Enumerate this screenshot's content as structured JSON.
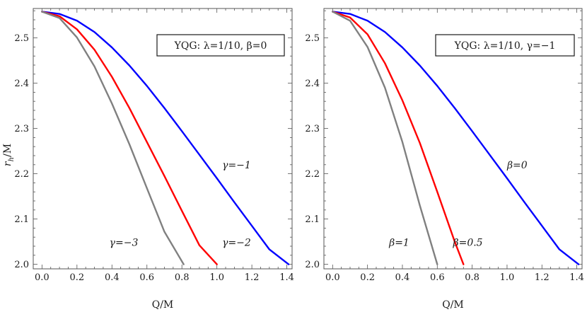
{
  "chart_data": [
    {
      "type": "line",
      "title": "",
      "xlabel": "Q/M",
      "ylabel_main": "r",
      "ylabel_sub": "h",
      "ylabel_suffix": "/M",
      "xlim": [
        -0.05,
        1.43
      ],
      "ylim": [
        1.99,
        2.565
      ],
      "xticks": [
        0.0,
        0.2,
        0.4,
        0.6,
        0.8,
        1.0,
        1.2,
        1.4
      ],
      "xtick_labels": [
        "0.0",
        "0.2",
        "0.4",
        "0.6",
        "0.8",
        "1.0",
        "1.2",
        "1.4"
      ],
      "yticks": [
        2.0,
        2.1,
        2.2,
        2.3,
        2.4,
        2.5
      ],
      "ytick_labels": [
        "2.0",
        "2.1",
        "2.2",
        "2.3",
        "2.4",
        "2.5"
      ],
      "legend": {
        "text": "YQG: λ=1/10,  β=0",
        "placement": "top-right"
      },
      "series": [
        {
          "name": "γ=−1",
          "color": "#0000ff",
          "x": [
            0.0,
            0.1,
            0.2,
            0.3,
            0.4,
            0.5,
            0.6,
            0.7,
            0.8,
            0.9,
            1.0,
            1.1,
            1.2,
            1.3,
            1.41
          ],
          "y": [
            2.558,
            2.553,
            2.538,
            2.513,
            2.479,
            2.439,
            2.394,
            2.345,
            2.294,
            2.242,
            2.19,
            2.137,
            2.085,
            2.033,
            2.0
          ]
        },
        {
          "name": "γ=−2",
          "color": "#ff0000",
          "x": [
            0.0,
            0.1,
            0.2,
            0.3,
            0.4,
            0.5,
            0.6,
            0.7,
            0.8,
            0.9,
            1.0
          ],
          "y": [
            2.558,
            2.548,
            2.519,
            2.474,
            2.414,
            2.345,
            2.27,
            2.195,
            2.118,
            2.042,
            2.0
          ]
        },
        {
          "name": "γ=−3",
          "color": "#808080",
          "x": [
            0.0,
            0.1,
            0.2,
            0.3,
            0.4,
            0.5,
            0.6,
            0.7,
            0.81
          ],
          "y": [
            2.558,
            2.544,
            2.501,
            2.437,
            2.355,
            2.265,
            2.168,
            2.072,
            2.0
          ]
        }
      ],
      "annotations": [
        {
          "text": "γ=−1",
          "x": 1.03,
          "y": 2.212
        },
        {
          "text": "γ=−2",
          "x": 1.03,
          "y": 2.041
        },
        {
          "text": "γ=−3",
          "x": 0.55,
          "y": 2.041
        }
      ]
    },
    {
      "type": "line",
      "title": "",
      "xlabel": "Q/M",
      "xlim": [
        -0.05,
        1.43
      ],
      "ylim": [
        1.99,
        2.565
      ],
      "xticks": [
        0.0,
        0.2,
        0.4,
        0.6,
        0.8,
        1.0,
        1.2,
        1.4
      ],
      "xtick_labels": [
        "0.0",
        "0.2",
        "0.4",
        "0.6",
        "0.8",
        "1.0",
        "1.2",
        "1.4"
      ],
      "yticks": [
        2.0,
        2.1,
        2.2,
        2.3,
        2.4,
        2.5
      ],
      "ytick_labels": [
        "2.0",
        "2.1",
        "2.2",
        "2.3",
        "2.4",
        "2.5"
      ],
      "legend": {
        "text": "YQG: λ=1/10,  γ=−1",
        "placement": "top-right"
      },
      "series": [
        {
          "name": "β=0",
          "color": "#0000ff",
          "x": [
            0.0,
            0.1,
            0.2,
            0.3,
            0.4,
            0.5,
            0.6,
            0.7,
            0.8,
            0.9,
            1.0,
            1.1,
            1.2,
            1.3,
            1.41
          ],
          "y": [
            2.558,
            2.553,
            2.538,
            2.513,
            2.479,
            2.439,
            2.394,
            2.345,
            2.294,
            2.242,
            2.19,
            2.137,
            2.085,
            2.033,
            2.0
          ]
        },
        {
          "name": "β=0.5",
          "color": "#ff0000",
          "x": [
            0.0,
            0.1,
            0.2,
            0.3,
            0.4,
            0.5,
            0.6,
            0.7,
            0.75
          ],
          "y": [
            2.558,
            2.545,
            2.508,
            2.444,
            2.362,
            2.268,
            2.16,
            2.05,
            2.0
          ]
        },
        {
          "name": "β=1",
          "color": "#808080",
          "x": [
            0.0,
            0.1,
            0.2,
            0.3,
            0.4,
            0.5,
            0.6
          ],
          "y": [
            2.558,
            2.538,
            2.48,
            2.39,
            2.27,
            2.13,
            2.0
          ]
        }
      ],
      "annotations": [
        {
          "text": "β=0",
          "x": 1.0,
          "y": 2.212
        },
        {
          "text": "β=0.5",
          "x": 0.69,
          "y": 2.041
        },
        {
          "text": "β=1",
          "x": 0.44,
          "y": 2.041
        }
      ]
    }
  ]
}
